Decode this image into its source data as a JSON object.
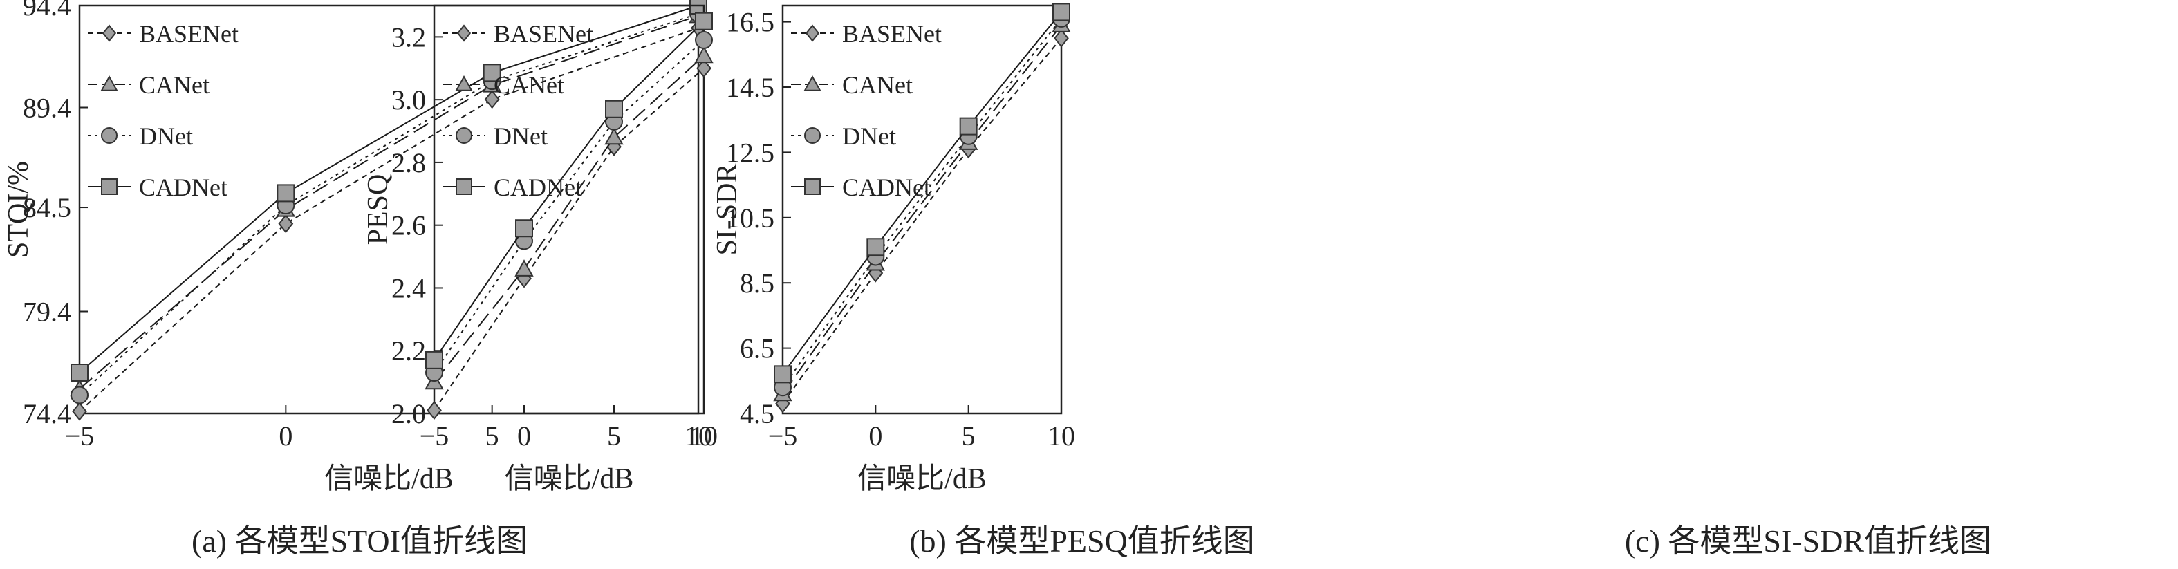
{
  "chart_data": [
    {
      "type": "line",
      "caption": "(a)  各模型STOI值折线图",
      "xlabel": "信噪比/dB",
      "ylabel": "STQI/%",
      "x": [
        -5,
        0,
        5,
        10
      ],
      "x_ticks": [
        "−5",
        "0",
        "5",
        "10"
      ],
      "y_ticks": [
        "74.4",
        "79.4",
        "84.5",
        "89.4",
        "94.4"
      ],
      "ylim": [
        74.4,
        94.4
      ],
      "grid": false,
      "legend_position": "top-left",
      "series": [
        {
          "name": "BASENet",
          "values": [
            74.5,
            83.7,
            89.8,
            93.3
          ]
        },
        {
          "name": "CANet",
          "values": [
            75.6,
            84.4,
            90.5,
            93.9
          ]
        },
        {
          "name": "DNet",
          "values": [
            75.3,
            84.6,
            90.7,
            94.0
          ]
        },
        {
          "name": "CADNet",
          "values": [
            76.4,
            85.2,
            91.1,
            94.4
          ]
        }
      ]
    },
    {
      "type": "line",
      "caption": "(b)  各模型PESQ值折线图",
      "xlabel": "信噪比/dB",
      "ylabel": "PESQ",
      "x": [
        -5,
        0,
        5,
        10
      ],
      "x_ticks": [
        "−5",
        "0",
        "5",
        "10"
      ],
      "y_ticks": [
        "2.0",
        "2.2",
        "2.4",
        "2.6",
        "2.8",
        "3.0",
        "3.2"
      ],
      "ylim": [
        2.0,
        3.3
      ],
      "grid": false,
      "legend_position": "top-left",
      "series": [
        {
          "name": "BASENet",
          "values": [
            2.01,
            2.43,
            2.85,
            3.1
          ]
        },
        {
          "name": "CANet",
          "values": [
            2.1,
            2.46,
            2.88,
            3.14
          ]
        },
        {
          "name": "DNet",
          "values": [
            2.13,
            2.55,
            2.93,
            3.19
          ]
        },
        {
          "name": "CADNet",
          "values": [
            2.17,
            2.59,
            2.97,
            3.25
          ]
        }
      ]
    },
    {
      "type": "line",
      "caption": "(c)  各模型SI-SDR值折线图",
      "xlabel": "信噪比/dB",
      "ylabel": "SI-SDR",
      "x": [
        -5,
        0,
        5,
        10
      ],
      "x_ticks": [
        "−5",
        "0",
        "5",
        "10"
      ],
      "y_ticks": [
        "4.5",
        "6.5",
        "8.5",
        "10.5",
        "12.5",
        "14.5",
        "16.5"
      ],
      "ylim": [
        4.5,
        17.0
      ],
      "grid": false,
      "legend_position": "top-left",
      "series": [
        {
          "name": "BASENet",
          "values": [
            4.8,
            8.8,
            12.6,
            16.0
          ]
        },
        {
          "name": "CANet",
          "values": [
            5.1,
            9.1,
            12.8,
            16.4
          ]
        },
        {
          "name": "DNet",
          "values": [
            5.3,
            9.3,
            13.0,
            16.6
          ]
        },
        {
          "name": "CADNet",
          "values": [
            5.7,
            9.6,
            13.3,
            16.8
          ]
        }
      ]
    }
  ],
  "style": {
    "line_color": "#1a1a1a",
    "marker_fill": "#9e9e9e",
    "marker_stroke": "#333333"
  }
}
